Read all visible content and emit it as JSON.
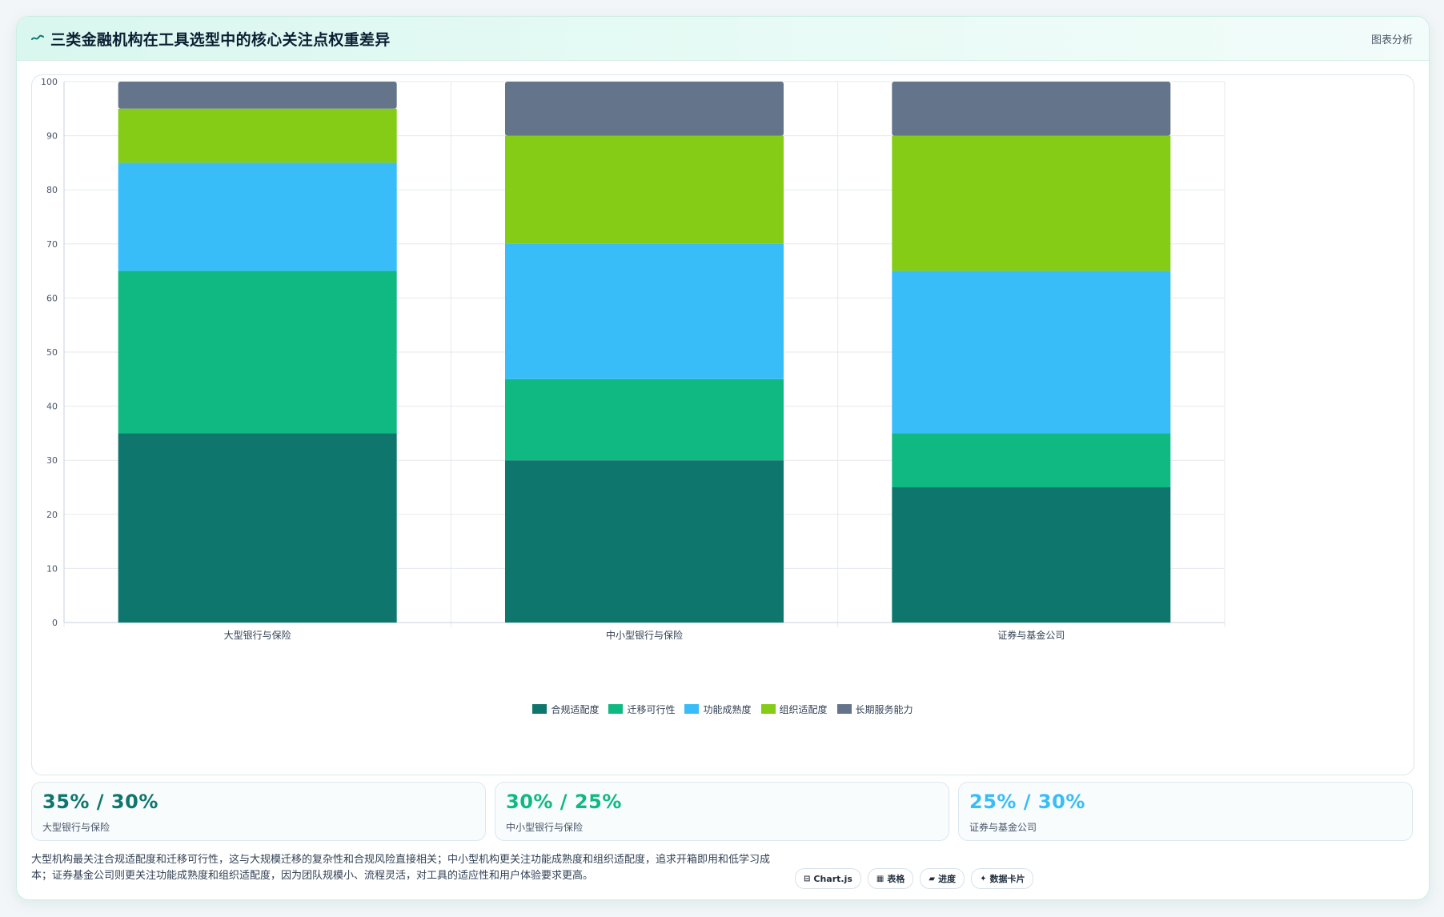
{
  "header": {
    "title": "三类金融机构在工具选型中的核心关注点权重差异",
    "right_link": "图表分析",
    "icon": "wave-icon"
  },
  "colors": {
    "series": [
      "#0f766e",
      "#10b981",
      "#38bdf8",
      "#84cc16",
      "#64748b"
    ],
    "grid": "#e5e9ee",
    "axis_text": "#4a5568"
  },
  "chart_data": {
    "type": "bar",
    "stacked": true,
    "title": "",
    "xlabel": "",
    "ylabel": "",
    "categories": [
      "大型银行与保险",
      "中小型银行与保险",
      "证券与基金公司"
    ],
    "ylim": [
      0,
      100
    ],
    "yticks": [
      0,
      10,
      20,
      30,
      40,
      50,
      60,
      70,
      80,
      90,
      100
    ],
    "series": [
      {
        "name": "合规适配度",
        "values": [
          35,
          30,
          25
        ]
      },
      {
        "name": "迁移可行性",
        "values": [
          30,
          15,
          10
        ]
      },
      {
        "name": "功能成熟度",
        "values": [
          20,
          25,
          30
        ]
      },
      {
        "name": "组织适配度",
        "values": [
          10,
          20,
          25
        ]
      },
      {
        "name": "长期服务能力",
        "values": [
          5,
          10,
          10
        ]
      }
    ],
    "legend_position": "bottom",
    "grid": true
  },
  "stats": [
    {
      "value": "35% / 30%",
      "label": "大型银行与保险",
      "color": "#0f766e"
    },
    {
      "value": "30% / 25%",
      "label": "中小型银行与保险",
      "color": "#10b981"
    },
    {
      "value": "25% / 30%",
      "label": "证券与基金公司",
      "color": "#38bdf8"
    }
  ],
  "note": "大型机构最关注合规适配度和迁移可行性，这与大规模迁移的复杂性和合规风险直接相关；中小型机构更关注功能成熟度和组织适配度，追求开箱即用和低学习成本；证券基金公司则更关注功能成熟度和组织适配度，因为团队规模小、流程灵活，对工具的适应性和用户体验要求更高。",
  "chips": [
    {
      "icon": "⊟",
      "label": "Chart.js"
    },
    {
      "icon": "▦",
      "label": "表格"
    },
    {
      "icon": "▰",
      "label": "进度"
    },
    {
      "icon": "✦",
      "label": "数据卡片"
    }
  ]
}
